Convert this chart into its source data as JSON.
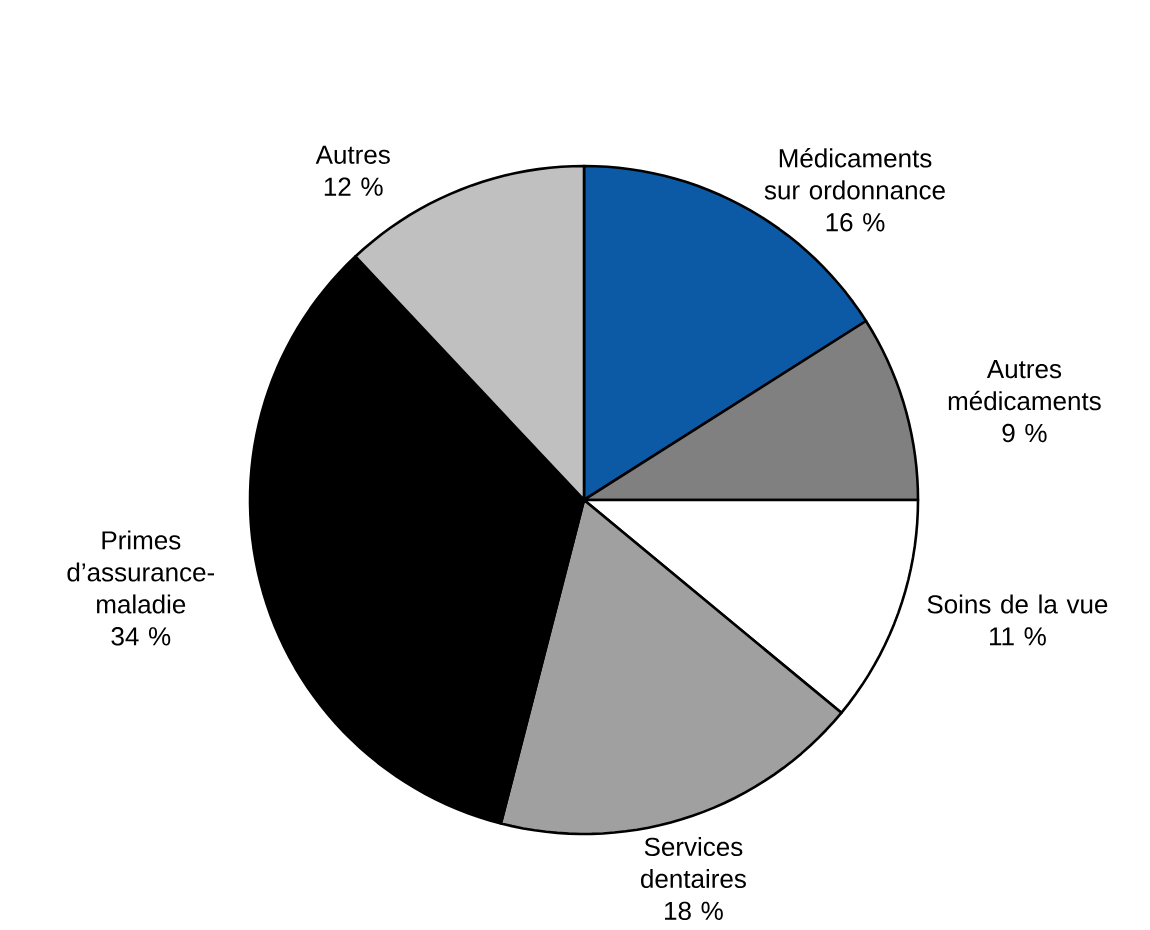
{
  "chart_data": {
    "type": "pie",
    "categories": [
      "Médicaments sur ordonnance",
      "Autres médicaments",
      "Soins de la vue",
      "Services dentaires",
      "Primes d’assurance-maladie",
      "Autres"
    ],
    "values": [
      16,
      9,
      11,
      18,
      34,
      12
    ],
    "value_labels": [
      "16 %",
      "9 %",
      "11 %",
      "18 %",
      "34 %",
      "12 %"
    ],
    "colors": [
      "#0c5aa6",
      "#808080",
      "#ffffff",
      "#a0a0a0",
      "#000000",
      "#c0c0c0"
    ]
  }
}
